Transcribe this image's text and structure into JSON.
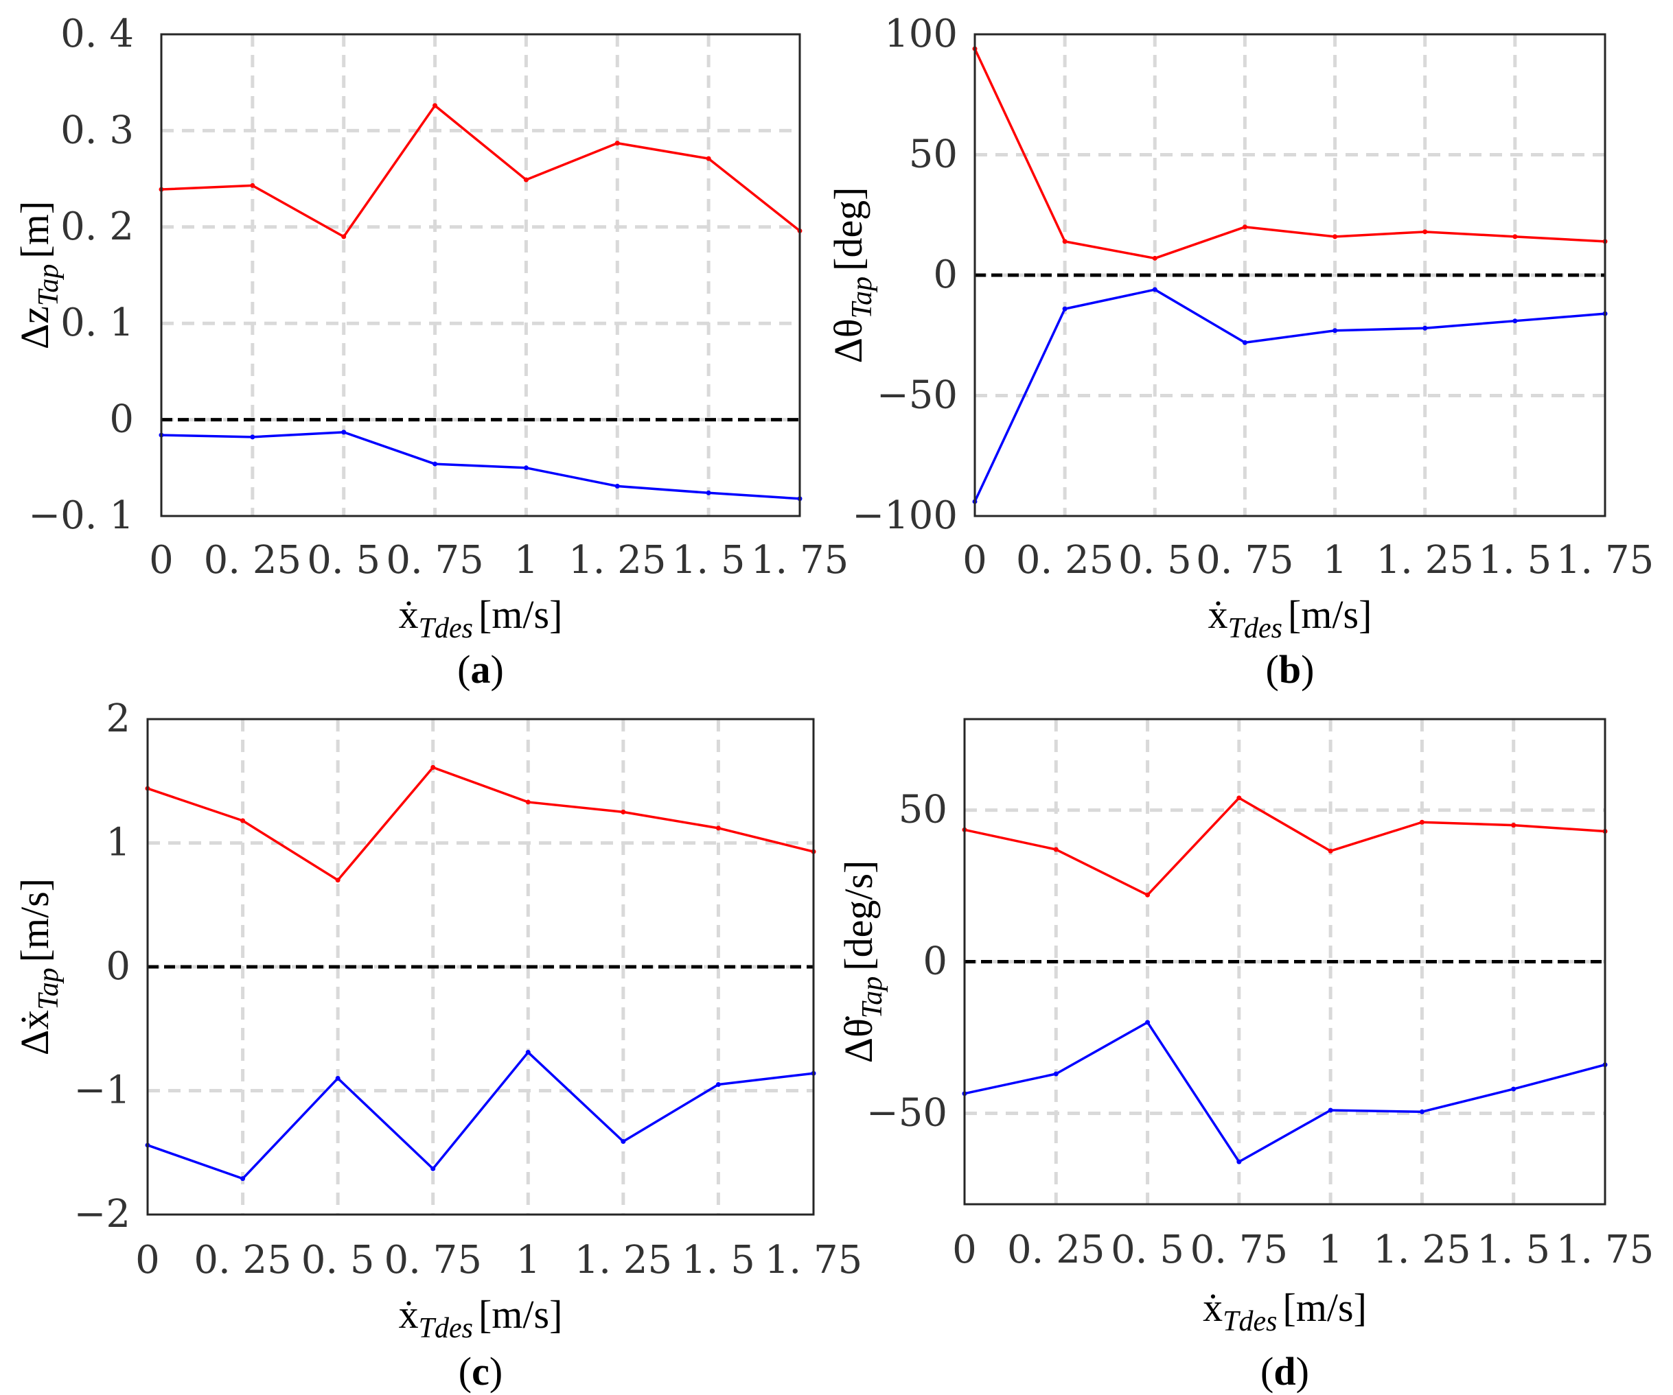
{
  "figure": {
    "x_tick_labels": [
      "0",
      "0. 25",
      "0. 5",
      "0. 75",
      "1",
      "1. 25",
      "1. 5",
      "1. 75"
    ],
    "xlabel_sym": "ẋ",
    "xlabel_sub": "Tdes",
    "xlabel_unit": "[m/s]",
    "colors": {
      "upper": "#ff0000",
      "lower": "#0000ff",
      "zero": "#000000",
      "grid": "#d9d9d9",
      "axis": "#262626"
    }
  },
  "chart_data": [
    {
      "id": "a",
      "type": "line",
      "panel_label": "a",
      "x": [
        0,
        0.25,
        0.5,
        0.75,
        1,
        1.25,
        1.5,
        1.75
      ],
      "xlim": [
        0,
        1.75
      ],
      "ylim": [
        -0.1,
        0.4
      ],
      "y_ticks": [
        -0.1,
        0,
        0.1,
        0.2,
        0.3,
        0.4
      ],
      "y_tick_labels": [
        "−0. 1",
        "0",
        "0. 1",
        "0. 2",
        "0. 3",
        "0. 4"
      ],
      "ylabel_pre": "Δ",
      "ylabel_sym": "z",
      "ylabel_sub": "Tap",
      "ylabel_unit": "[m]",
      "xlabel": "ẋTdes [m/s]",
      "zero_line": 0,
      "series": [
        {
          "name": "upper",
          "color": "#ff0000",
          "values": [
            0.239,
            0.243,
            0.19,
            0.326,
            0.249,
            0.287,
            0.271,
            0.196
          ]
        },
        {
          "name": "lower",
          "color": "#0000ff",
          "values": [
            -0.016,
            -0.018,
            -0.013,
            -0.046,
            -0.05,
            -0.069,
            -0.076,
            -0.082
          ]
        }
      ]
    },
    {
      "id": "b",
      "type": "line",
      "panel_label": "b",
      "x": [
        0,
        0.25,
        0.5,
        0.75,
        1,
        1.25,
        1.5,
        1.75
      ],
      "xlim": [
        0,
        1.75
      ],
      "ylim": [
        -100,
        100
      ],
      "y_ticks": [
        -100,
        -50,
        0,
        50,
        100
      ],
      "y_tick_labels": [
        "−100",
        "−50",
        "0",
        "50",
        "100"
      ],
      "ylabel_pre": "Δ",
      "ylabel_sym": "θ",
      "ylabel_sub": "Tap",
      "ylabel_unit": "[deg]",
      "xlabel": "ẋTdes [m/s]",
      "zero_line": 0,
      "series": [
        {
          "name": "upper",
          "color": "#ff0000",
          "values": [
            94,
            14,
            7,
            20,
            16,
            18,
            16,
            14
          ]
        },
        {
          "name": "lower",
          "color": "#0000ff",
          "values": [
            -94,
            -14,
            -6,
            -28,
            -23,
            -22,
            -19,
            -16
          ]
        }
      ]
    },
    {
      "id": "c",
      "type": "line",
      "panel_label": "c",
      "x": [
        0,
        0.25,
        0.5,
        0.75,
        1,
        1.25,
        1.5,
        1.75
      ],
      "xlim": [
        0,
        1.75
      ],
      "ylim": [
        -2,
        2
      ],
      "y_ticks": [
        -2,
        -1,
        0,
        1,
        2
      ],
      "y_tick_labels": [
        "−2",
        "−1",
        "0",
        "1",
        "2"
      ],
      "ylabel_pre": "Δ",
      "ylabel_sym": "ẋ",
      "ylabel_sub": "Tap",
      "ylabel_unit": "[m/s]",
      "xlabel": "ẋTdes [m/s]",
      "zero_line": 0,
      "series": [
        {
          "name": "upper",
          "color": "#ff0000",
          "values": [
            1.44,
            1.18,
            0.7,
            1.61,
            1.33,
            1.25,
            1.12,
            0.93
          ]
        },
        {
          "name": "lower",
          "color": "#0000ff",
          "values": [
            -1.44,
            -1.71,
            -0.9,
            -1.63,
            -0.69,
            -1.41,
            -0.95,
            -0.86
          ]
        }
      ]
    },
    {
      "id": "d",
      "type": "line",
      "panel_label": "d",
      "x": [
        0,
        0.25,
        0.5,
        0.75,
        1,
        1.25,
        1.5,
        1.75
      ],
      "xlim": [
        0,
        1.75
      ],
      "ylim": [
        -80,
        80
      ],
      "y_ticks": [
        -50,
        0,
        50
      ],
      "y_tick_labels": [
        "−50",
        "0",
        "50"
      ],
      "ylabel_pre": "Δ",
      "ylabel_sym": "θ̇",
      "ylabel_sub": "Tap",
      "ylabel_unit": "[deg/s]",
      "xlabel": "ẋTdes [m/s]",
      "zero_line": 0,
      "series": [
        {
          "name": "upper",
          "color": "#ff0000",
          "values": [
            43.5,
            37,
            22,
            54,
            36.5,
            46,
            45,
            43
          ]
        },
        {
          "name": "lower",
          "color": "#0000ff",
          "values": [
            -43.5,
            -37,
            -20,
            -66,
            -49,
            -49.5,
            -42,
            -34
          ]
        }
      ]
    }
  ]
}
